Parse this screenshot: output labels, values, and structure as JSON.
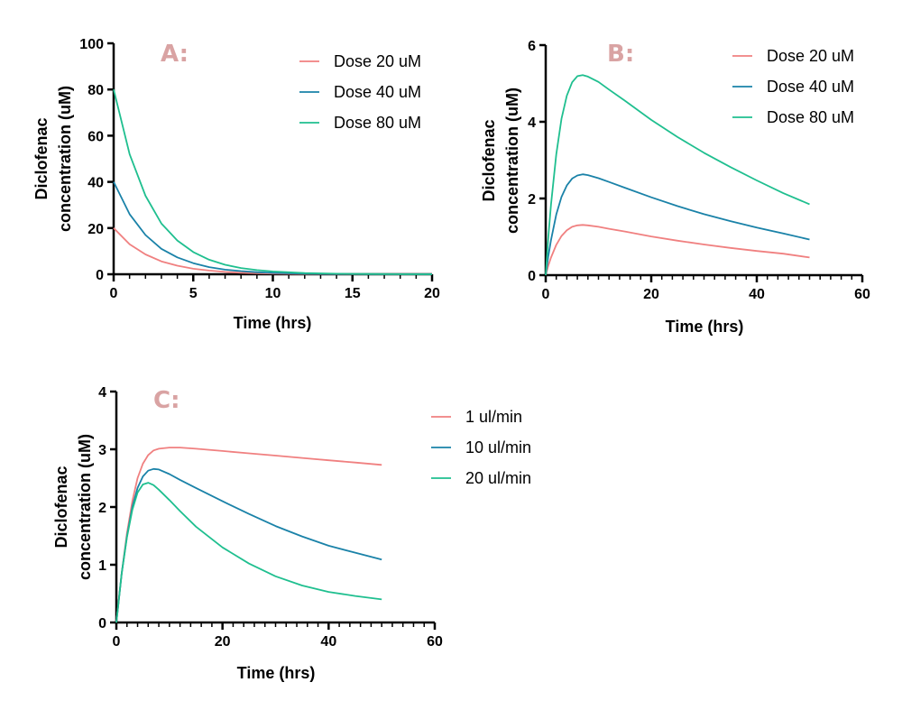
{
  "colors": {
    "red": "#f08080",
    "blue": "#1a82a8",
    "green": "#1fbf8f",
    "panel_letter": "#d9a3a3"
  },
  "chart_data": [
    {
      "type": "line",
      "panel_label": "A:",
      "xlabel": "Time (hrs)",
      "ylabel": [
        "Diclofenac",
        "concentration (uM)"
      ],
      "xlim": [
        0,
        20
      ],
      "ylim": [
        0,
        100
      ],
      "xticks": [
        0,
        5,
        10,
        15,
        20
      ],
      "yticks": [
        0,
        20,
        40,
        60,
        80,
        100
      ],
      "x_minor_step": 1,
      "legend_position": "top-right",
      "series": [
        {
          "name": "Dose 20 uM",
          "color": "#f08080",
          "x": [
            0,
            1,
            2,
            3,
            4,
            5,
            6,
            7,
            8,
            9,
            10,
            12,
            14,
            16,
            18,
            20
          ],
          "y": [
            20,
            13,
            8.6,
            5.6,
            3.7,
            2.4,
            1.6,
            1.0,
            0.68,
            0.45,
            0.3,
            0.12,
            0.06,
            0.03,
            0.01,
            0.0
          ]
        },
        {
          "name": "Dose 40 uM",
          "color": "#1a82a8",
          "x": [
            0,
            1,
            2,
            3,
            4,
            5,
            6,
            7,
            8,
            9,
            10,
            12,
            14,
            16,
            18,
            20
          ],
          "y": [
            40,
            26,
            17,
            11,
            7.3,
            4.8,
            3.1,
            2.0,
            1.35,
            0.9,
            0.6,
            0.25,
            0.12,
            0.05,
            0.02,
            0.0
          ]
        },
        {
          "name": "Dose 80 uM",
          "color": "#1fbf8f",
          "x": [
            0,
            1,
            2,
            3,
            4,
            5,
            6,
            7,
            8,
            9,
            10,
            12,
            14,
            16,
            18,
            20
          ],
          "y": [
            80,
            52,
            34,
            22,
            14.6,
            9.6,
            6.3,
            4.1,
            2.7,
            1.8,
            1.2,
            0.5,
            0.22,
            0.1,
            0.04,
            0.0
          ]
        }
      ]
    },
    {
      "type": "line",
      "panel_label": "B:",
      "xlabel": "Time (hrs)",
      "ylabel": [
        "Diclofenac",
        "concentration (uM)"
      ],
      "xlim": [
        0,
        60
      ],
      "ylim": [
        0,
        6
      ],
      "xticks": [
        0,
        20,
        40,
        60
      ],
      "yticks": [
        0,
        2,
        4,
        6
      ],
      "x_minor_step": 2,
      "legend_position": "top-right",
      "series": [
        {
          "name": "Dose 20 uM",
          "color": "#f08080",
          "x": [
            0,
            0.5,
            1,
            2,
            3,
            4,
            5,
            6,
            7,
            8,
            10,
            12,
            15,
            20,
            25,
            30,
            35,
            40,
            45,
            50
          ],
          "y": [
            0,
            0.25,
            0.46,
            0.79,
            1.02,
            1.17,
            1.26,
            1.3,
            1.31,
            1.3,
            1.26,
            1.21,
            1.14,
            1.01,
            0.9,
            0.8,
            0.71,
            0.63,
            0.56,
            0.46
          ]
        },
        {
          "name": "Dose 40 uM",
          "color": "#1a82a8",
          "x": [
            0,
            0.5,
            1,
            2,
            3,
            4,
            5,
            6,
            7,
            8,
            10,
            12,
            15,
            20,
            25,
            30,
            35,
            40,
            45,
            50
          ],
          "y": [
            0,
            0.5,
            0.92,
            1.58,
            2.04,
            2.34,
            2.52,
            2.6,
            2.63,
            2.61,
            2.53,
            2.43,
            2.28,
            2.03,
            1.8,
            1.59,
            1.41,
            1.24,
            1.09,
            0.93
          ]
        },
        {
          "name": "Dose 80 uM",
          "color": "#1fbf8f",
          "x": [
            0,
            0.5,
            1,
            2,
            3,
            4,
            5,
            6,
            7,
            8,
            10,
            12,
            15,
            20,
            25,
            30,
            35,
            40,
            45,
            50
          ],
          "y": [
            0,
            1.0,
            1.85,
            3.15,
            4.08,
            4.68,
            5.03,
            5.19,
            5.22,
            5.18,
            5.04,
            4.84,
            4.55,
            4.05,
            3.6,
            3.19,
            2.82,
            2.47,
            2.14,
            1.85
          ]
        }
      ]
    },
    {
      "type": "line",
      "panel_label": "C:",
      "xlabel": "Time (hrs)",
      "ylabel": [
        "Diclofenac",
        "concentration (uM)"
      ],
      "xlim": [
        0,
        60
      ],
      "ylim": [
        0,
        4
      ],
      "xticks": [
        0,
        20,
        40,
        60
      ],
      "yticks": [
        0,
        1,
        2,
        3,
        4
      ],
      "x_minor_step": 2,
      "legend_position": "top-right",
      "series": [
        {
          "name": "1 ul/min",
          "color": "#f08080",
          "x": [
            0,
            1,
            2,
            3,
            4,
            5,
            6,
            7,
            8,
            10,
            12,
            15,
            20,
            25,
            30,
            35,
            40,
            45,
            50
          ],
          "y": [
            0,
            0.85,
            1.55,
            2.1,
            2.5,
            2.75,
            2.9,
            2.98,
            3.01,
            3.03,
            3.03,
            3.01,
            2.97,
            2.93,
            2.89,
            2.85,
            2.81,
            2.77,
            2.73
          ]
        },
        {
          "name": "10 ul/min",
          "color": "#1a82a8",
          "x": [
            0,
            1,
            2,
            3,
            4,
            5,
            6,
            7,
            8,
            10,
            12,
            15,
            20,
            25,
            30,
            35,
            40,
            45,
            50
          ],
          "y": [
            0,
            0.85,
            1.5,
            2.0,
            2.33,
            2.53,
            2.63,
            2.66,
            2.65,
            2.57,
            2.47,
            2.33,
            2.1,
            1.88,
            1.67,
            1.49,
            1.33,
            1.21,
            1.09
          ]
        },
        {
          "name": "20 ul/min",
          "color": "#1fbf8f",
          "x": [
            0,
            1,
            2,
            3,
            4,
            5,
            6,
            7,
            8,
            10,
            12,
            15,
            20,
            25,
            30,
            35,
            40,
            45,
            50
          ],
          "y": [
            0,
            0.85,
            1.48,
            1.95,
            2.25,
            2.39,
            2.42,
            2.38,
            2.3,
            2.12,
            1.93,
            1.66,
            1.3,
            1.02,
            0.8,
            0.64,
            0.53,
            0.46,
            0.4
          ]
        }
      ]
    }
  ]
}
